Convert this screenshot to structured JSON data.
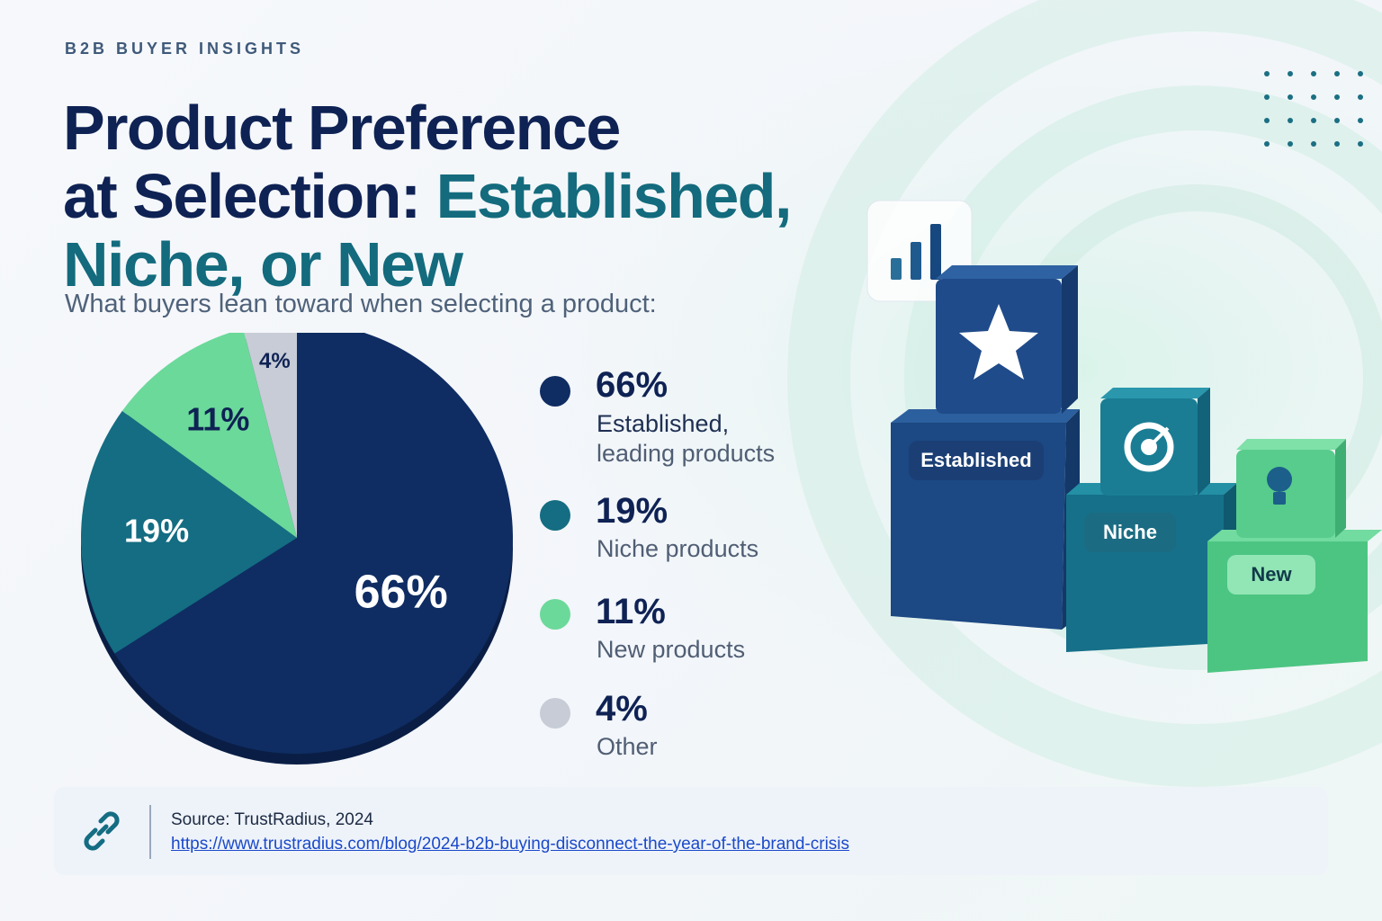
{
  "header": {
    "eyebrow": "B2B BUYER INSIGHTS",
    "title_part1": "Product Preference",
    "title_part2": "at Selection: ",
    "title_accent": "Established, Niche, or New",
    "subtitle": "What buyers lean toward when selecting a product:"
  },
  "chart_data": {
    "type": "pie",
    "slices": [
      {
        "label": "Established, leading products",
        "value": 66,
        "display": "66%",
        "color": "#0f2d63"
      },
      {
        "label": "Niche products",
        "value": 19,
        "display": "19%",
        "color": "#146d82"
      },
      {
        "label": "New products",
        "value": 11,
        "display": "11%",
        "color": "#6bd99a"
      },
      {
        "label": "Other",
        "value": 4,
        "display": "4%",
        "color": "#c7ccd6"
      }
    ]
  },
  "legend": [
    {
      "value": "66%",
      "label_line1": "Established,",
      "label_line2": "leading products",
      "color": "#0f2d63"
    },
    {
      "value": "19%",
      "label_line1": "Niche products",
      "label_line2": "",
      "color": "#146d82"
    },
    {
      "value": "11%",
      "label_line1": "New products",
      "label_line2": "",
      "color": "#6bd99a"
    },
    {
      "value": "4%",
      "label_line1": "Other",
      "label_line2": "",
      "color": "#c7ccd6"
    }
  ],
  "illustration": {
    "blocks": [
      "Established",
      "Niche",
      "New"
    ],
    "icons": [
      "bar-chart-icon",
      "star-icon",
      "target-icon",
      "lightbulb-icon"
    ]
  },
  "source": {
    "text": "Source: TrustRadius, 2024",
    "url": "https://www.trustradius.com/blog/2024-b2b-buying-disconnect-the-year-of-the-brand-crisis",
    "icon": "link-icon"
  }
}
